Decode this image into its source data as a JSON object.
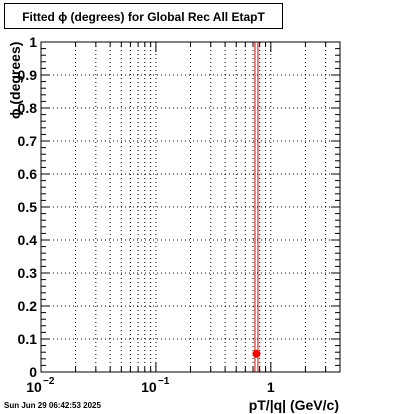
{
  "chart_data": {
    "type": "scatter",
    "title": "Fitted ϕ (degrees) for Global Rec All EtapT",
    "xlabel": "pT/|q| (GeV/c)",
    "ylabel": "ϕ (degrees)",
    "x_scale": "log",
    "xlim": [
      0.01,
      4.0
    ],
    "ylim": [
      0,
      1
    ],
    "grid": true,
    "x_ticks": [
      {
        "value": 0.01,
        "base": "10",
        "exp": "−2"
      },
      {
        "value": 0.1,
        "base": "10",
        "exp": "−1"
      },
      {
        "value": 1,
        "base": "1",
        "exp": ""
      }
    ],
    "y_ticks": [
      "0",
      "0.1",
      "0.2",
      "0.3",
      "0.4",
      "0.5",
      "0.6",
      "0.7",
      "0.8",
      "0.9",
      "1"
    ],
    "vertical_line_x": 0.75,
    "vertical_line_color": "#cc0000",
    "marker_color": "#ff0000",
    "points": [
      {
        "x": 0.75,
        "y": 0.055
      }
    ]
  },
  "timestamp": "Sun Jun 29 06:42:53 2025"
}
